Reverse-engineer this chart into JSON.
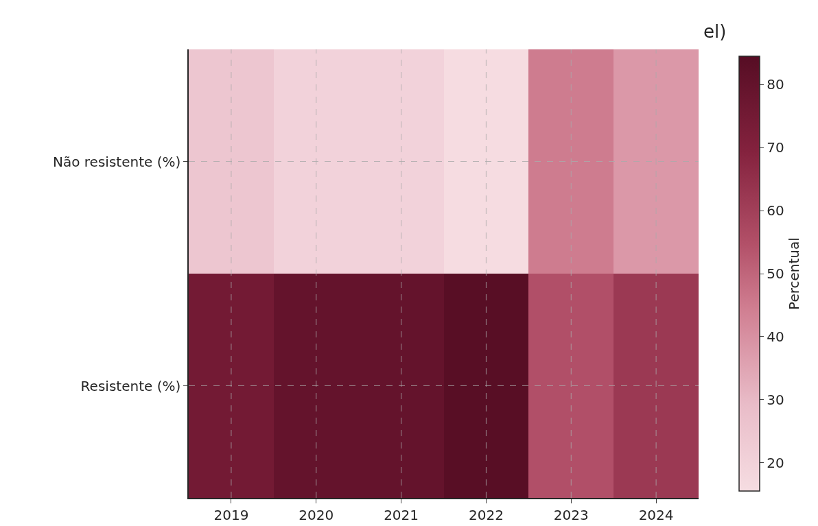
{
  "chart_data": {
    "type": "heatmap",
    "title": "el)",
    "clabel": "Percentual",
    "categories": [
      "2019",
      "2020",
      "2021",
      "2022",
      "2023",
      "2024"
    ],
    "y_categories": [
      "Não resistente (%)",
      "Resistente (%)"
    ],
    "cells": [
      [
        25,
        20,
        20,
        16,
        45,
        38
      ],
      [
        75,
        80,
        80,
        84,
        55,
        62
      ]
    ],
    "clim": [
      15.5,
      84.5
    ],
    "cticks": [
      20,
      30,
      40,
      50,
      60,
      70,
      80
    ],
    "grid": true
  }
}
